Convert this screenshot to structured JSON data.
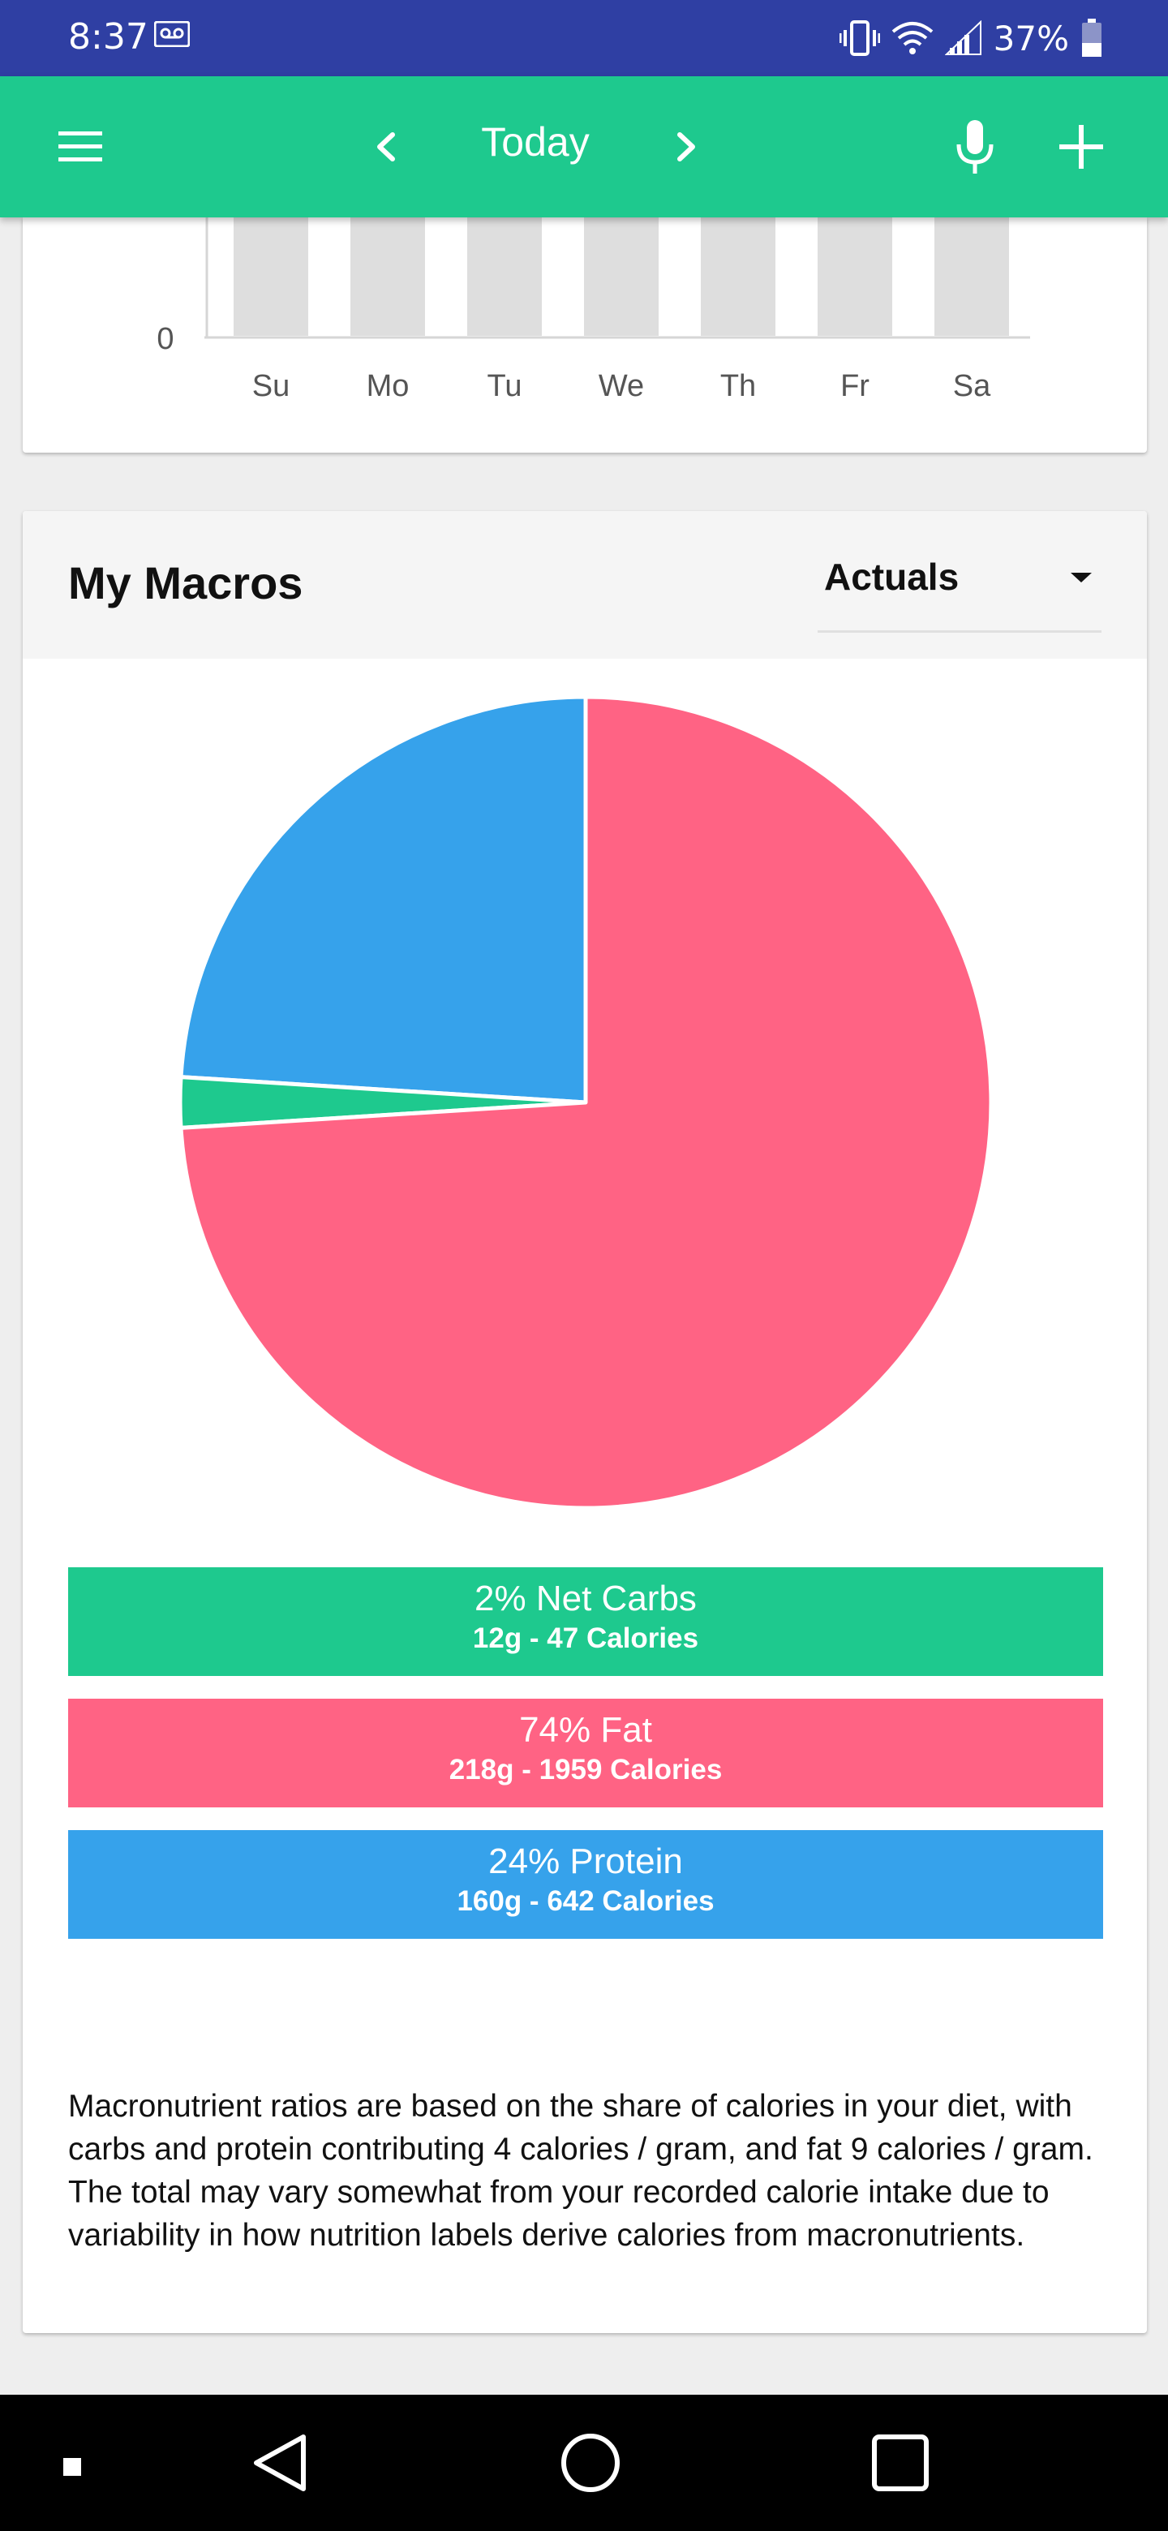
{
  "status_bar": {
    "time": "8:37",
    "battery_percent": "37%",
    "icons": [
      "voicemail-icon",
      "vibrate-icon",
      "wifi-icon",
      "signal-icon",
      "battery-icon"
    ]
  },
  "app_bar": {
    "title": "Today",
    "icons": [
      "menu-icon",
      "chevron-left-icon",
      "chevron-right-icon",
      "mic-icon",
      "add-icon"
    ]
  },
  "week_chart": {
    "chart_data": {
      "type": "bar",
      "categories": [
        "Su",
        "Mo",
        "Tu",
        "We",
        "Th",
        "Fr",
        "Sa"
      ],
      "y_tick_visible": "0",
      "bar_color": "#dedede"
    }
  },
  "macros": {
    "title": "My Macros",
    "view_select": {
      "value": "Actuals"
    },
    "chart_data": {
      "type": "pie",
      "slices": [
        {
          "name": "Net Carbs",
          "percent": 2,
          "color": "#1ec98e"
        },
        {
          "name": "Fat",
          "percent": 74,
          "color": "#ff6384"
        },
        {
          "name": "Protein",
          "percent": 24,
          "color": "#36a2eb"
        }
      ]
    },
    "legend": [
      {
        "title": "2% Net Carbs",
        "sub": "12g - 47 Calories"
      },
      {
        "title": "74% Fat",
        "sub": "218g - 1959 Calories"
      },
      {
        "title": "24% Protein",
        "sub": "160g - 642 Calories"
      }
    ],
    "note": "Macronutrient ratios are based on the share of calories in your diet, with carbs and protein contributing 4 calories / gram, and fat 9 calories / gram. The total may vary somewhat from your recorded calorie intake due to variability in how nutrition labels derive calories from macronutrients."
  },
  "nav_bar": {
    "icons": [
      "stop-icon",
      "back-icon",
      "home-icon",
      "recents-icon"
    ]
  }
}
